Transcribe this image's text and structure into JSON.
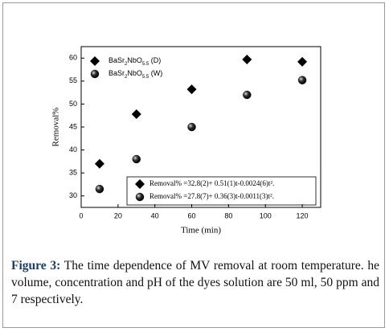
{
  "chart_data": {
    "type": "scatter",
    "x_label": "Time (min)",
    "y_label": "Removal%",
    "series": [
      {
        "name": "BaSr2NbO5.5 (D)",
        "color": "#000000",
        "marker": "diamond",
        "x": [
          10,
          30,
          60,
          90,
          120
        ],
        "values": [
          37,
          47.8,
          53.2,
          59.7,
          59.2
        ]
      },
      {
        "name": "BaSr2NbO5.5 (W)",
        "color": "#1a1a1a",
        "marker": "sphere",
        "x": [
          10,
          30,
          60,
          90,
          120
        ],
        "values": [
          31.5,
          38,
          45,
          52,
          55.2
        ]
      }
    ],
    "xlim": [
      0,
      130
    ],
    "xticks": [
      0,
      20,
      40,
      60,
      80,
      100,
      120
    ],
    "ylim": [
      27.5,
      62.5
    ],
    "yticks": [
      30,
      35,
      40,
      45,
      50,
      55,
      60
    ],
    "annotations": [
      "Removal% =32.8(2)+ 0.51(1)t-0.0024(6)t².",
      "Removal% =27.8(7)+ 0.36(3)t-0.0011(3)t²."
    ]
  },
  "caption": {
    "label": "Figure 3:",
    "text": "The time dependence of MV removal at room temperature.  he volume, concentration and pH of the dyes solution are 50 ml, 50 ppm and 7 respectively."
  }
}
